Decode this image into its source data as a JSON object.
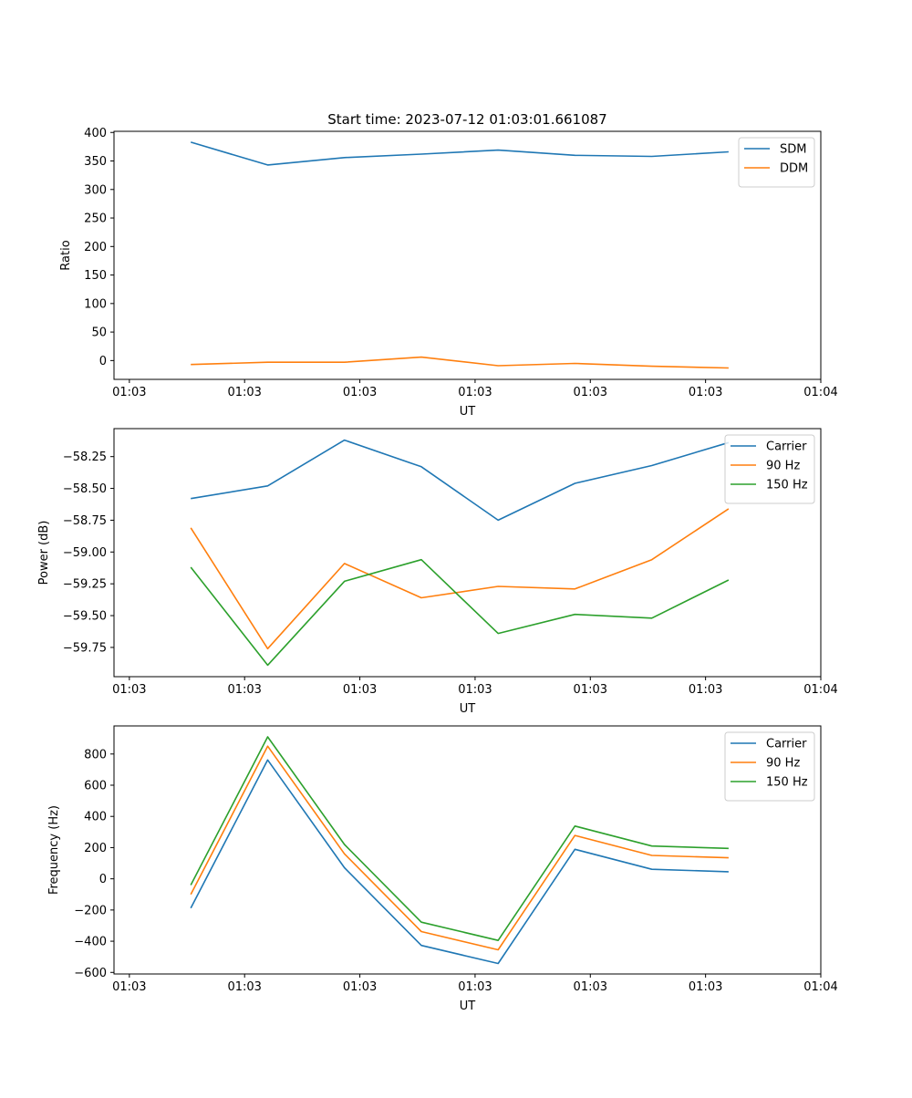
{
  "title": "Start time: 2023-07-12 01:03:01.661087",
  "colors": {
    "c0": "#1f77b4",
    "c1": "#ff7f0e",
    "c2": "#2ca02c",
    "axis": "#000000"
  },
  "chart_data": [
    {
      "type": "line",
      "title": "Start time: 2023-07-12 01:03:01.661087",
      "xlabel": "UT",
      "ylabel": "Ratio",
      "x": [
        0.5,
        1,
        1.5,
        2,
        2.5,
        3,
        3.5,
        4
      ],
      "xlim": [
        0,
        4.6
      ],
      "xticks": [
        0.1,
        0.85,
        1.6,
        2.35,
        3.1,
        3.85,
        4.6
      ],
      "xtick_labels": [
        "01:03",
        "01:03",
        "01:03",
        "01:03",
        "01:03",
        "01:03",
        "01:04"
      ],
      "ylim": [
        -33,
        402
      ],
      "yticks": [
        0,
        50,
        100,
        150,
        200,
        250,
        300,
        350,
        400
      ],
      "ytick_labels": [
        "0",
        "50",
        "100",
        "150",
        "200",
        "250",
        "300",
        "350",
        "400"
      ],
      "legend": "top-right",
      "series": [
        {
          "name": "SDM",
          "values": [
            383,
            343,
            356,
            362,
            369,
            360,
            358,
            366
          ]
        },
        {
          "name": "DDM",
          "values": [
            -7,
            -3,
            -3,
            6,
            -9,
            -5,
            -10,
            -13
          ]
        }
      ]
    },
    {
      "type": "line",
      "xlabel": "UT",
      "ylabel": "Power (dB)",
      "x": [
        0.5,
        1,
        1.5,
        2,
        2.5,
        3,
        3.5,
        4
      ],
      "xlim": [
        0,
        4.6
      ],
      "xticks": [
        0.1,
        0.85,
        1.6,
        2.35,
        3.1,
        3.85,
        4.6
      ],
      "xtick_labels": [
        "01:03",
        "01:03",
        "01:03",
        "01:03",
        "01:03",
        "01:03",
        "01:04"
      ],
      "ylim": [
        -59.98,
        -58.03
      ],
      "yticks": [
        -59.75,
        -59.5,
        -59.25,
        -59.0,
        -58.75,
        -58.5,
        -58.25
      ],
      "ytick_labels": [
        "−59.75",
        "−59.50",
        "−59.25",
        "−59.00",
        "−58.75",
        "−58.50",
        "−58.25"
      ],
      "legend": "top-right",
      "series": [
        {
          "name": "Carrier",
          "values": [
            -58.58,
            -58.48,
            -58.12,
            -58.33,
            -58.75,
            -58.46,
            -58.32,
            -58.14
          ]
        },
        {
          "name": "90 Hz",
          "values": [
            -58.81,
            -59.76,
            -59.09,
            -59.36,
            -59.27,
            -59.29,
            -59.06,
            -58.66
          ]
        },
        {
          "name": "150 Hz",
          "values": [
            -59.12,
            -59.89,
            -59.23,
            -59.06,
            -59.64,
            -59.49,
            -59.52,
            -59.22
          ]
        }
      ]
    },
    {
      "type": "line",
      "xlabel": "UT",
      "ylabel": "Frequency (Hz)",
      "x": [
        0.5,
        1,
        1.5,
        2,
        2.5,
        3,
        3.5,
        4
      ],
      "xlim": [
        0,
        4.6
      ],
      "xticks": [
        0.1,
        0.85,
        1.6,
        2.35,
        3.1,
        3.85,
        4.6
      ],
      "xtick_labels": [
        "01:03",
        "01:03",
        "01:03",
        "01:03",
        "01:03",
        "01:03",
        "01:04"
      ],
      "ylim": [
        -610,
        980
      ],
      "yticks": [
        -600,
        -400,
        -200,
        0,
        200,
        400,
        600,
        800
      ],
      "ytick_labels": [
        "−600",
        "−400",
        "−200",
        "0",
        "200",
        "400",
        "600",
        "800"
      ],
      "legend": "top-right",
      "series": [
        {
          "name": "Carrier",
          "values": [
            -188,
            762,
            71,
            -427,
            -543,
            189,
            61,
            45
          ]
        },
        {
          "name": "90 Hz",
          "values": [
            -100,
            850,
            160,
            -338,
            -455,
            278,
            150,
            135
          ]
        },
        {
          "name": "150 Hz",
          "values": [
            -40,
            910,
            220,
            -278,
            -395,
            338,
            210,
            195
          ]
        }
      ]
    }
  ]
}
